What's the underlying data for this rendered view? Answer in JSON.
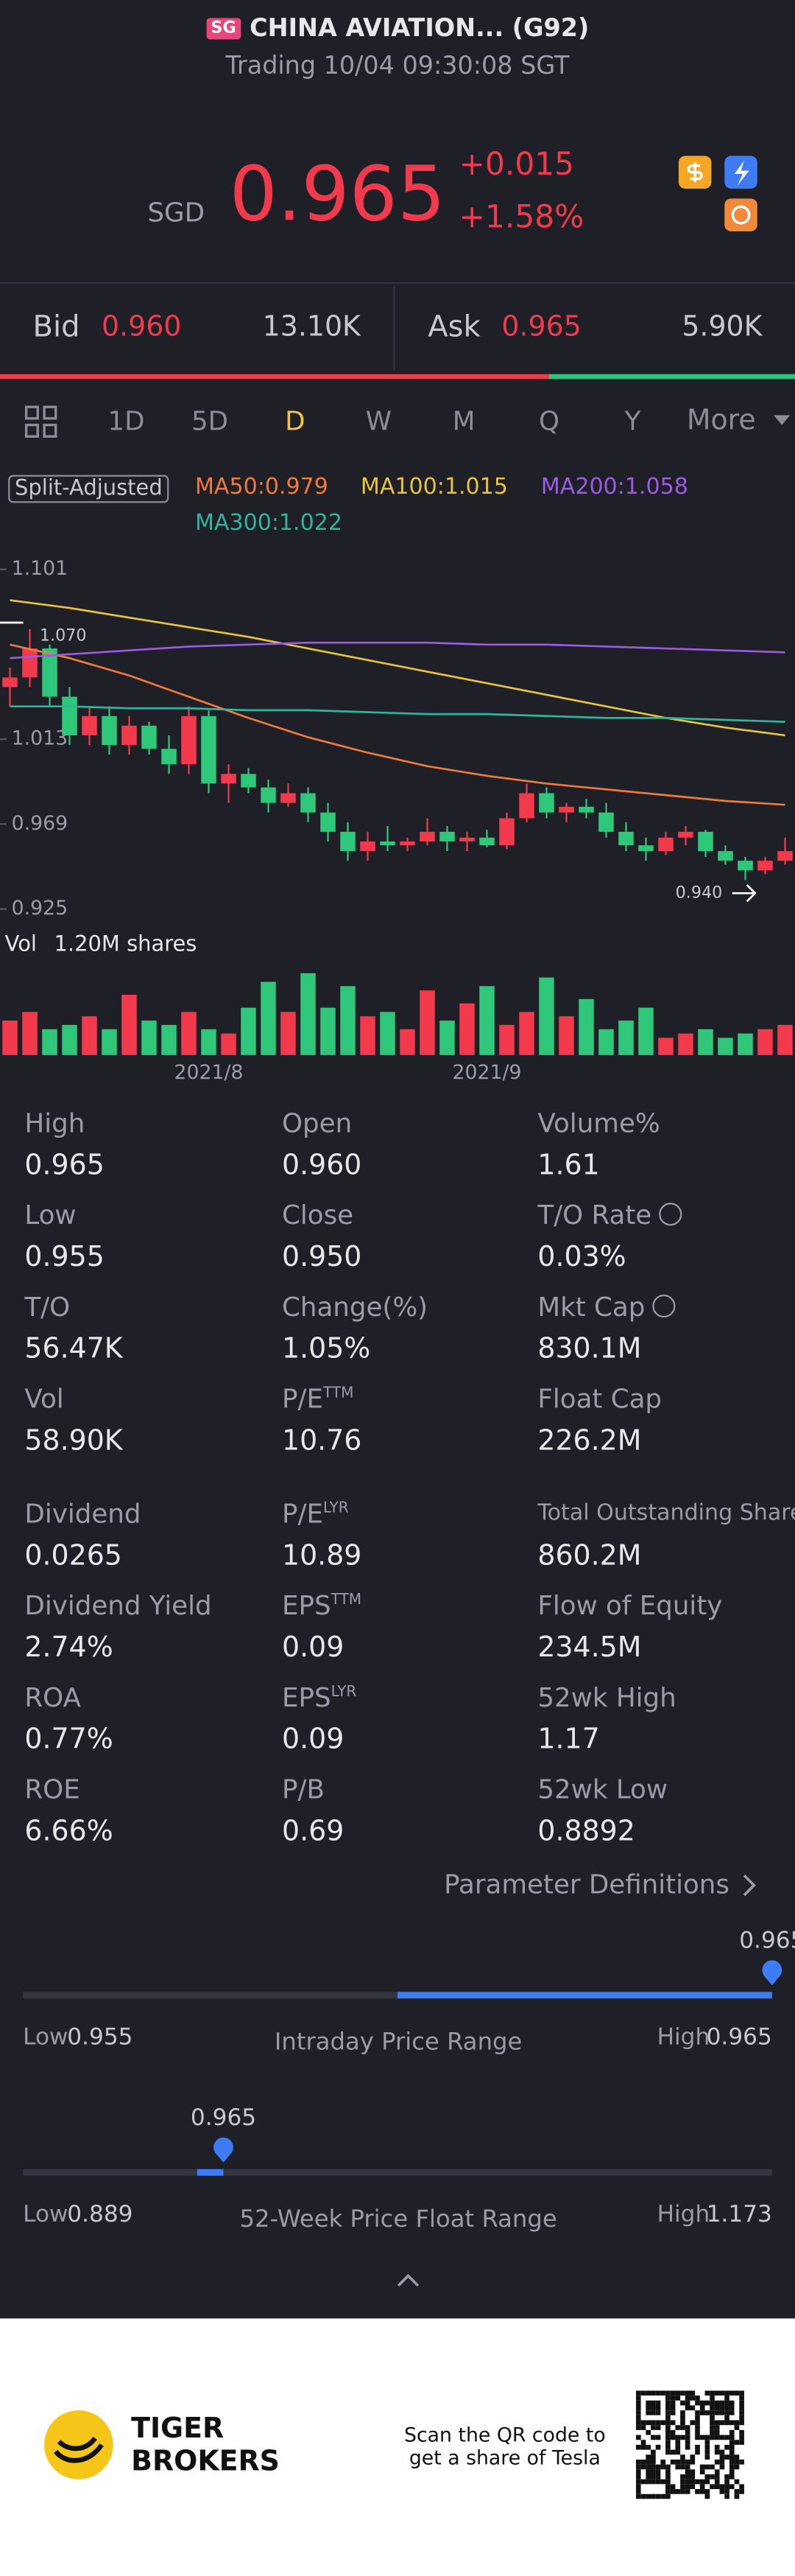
{
  "header": {
    "badge": "SG",
    "name": "CHINA AVIATION... (G92)",
    "status": "Trading 10/04 09:30:08 SGT"
  },
  "quote": {
    "currency": "SGD",
    "price": "0.965",
    "change": "+0.015",
    "change_pct": "+1.58%"
  },
  "bid_ask": {
    "bid_label": "Bid",
    "bid": "0.960",
    "bid_size": "13.10K",
    "ask_label": "Ask",
    "ask": "0.965",
    "ask_size": "5.90K"
  },
  "tabs": [
    "1D",
    "5D",
    "D",
    "W",
    "M",
    "Q",
    "Y",
    "More"
  ],
  "adjust_label": "Split-Adjusted",
  "chart_data": {
    "type": "candlestick",
    "categories": [
      null,
      null,
      null,
      null,
      null,
      null,
      null,
      null,
      null,
      null,
      "2021/8",
      null,
      null,
      null,
      null,
      null,
      null,
      null,
      null,
      null,
      null,
      null,
      null,
      null,
      "2021/9",
      null,
      null,
      null,
      null,
      null,
      null,
      null,
      null,
      null,
      null,
      null,
      null,
      null,
      null,
      null
    ],
    "open": [
      1.04,
      1.045,
      1.06,
      1.035,
      1.015,
      1.025,
      1.01,
      1.02,
      1.008,
      1.0,
      1.025,
      0.99,
      0.995,
      0.988,
      0.98,
      0.985,
      0.975,
      0.965,
      0.955,
      0.96,
      0.958,
      0.96,
      0.965,
      0.96,
      0.962,
      0.958,
      0.972,
      0.985,
      0.975,
      0.978,
      0.975,
      0.965,
      0.958,
      0.955,
      0.962,
      0.965,
      0.955,
      0.95,
      0.945,
      0.95
    ],
    "high": [
      1.05,
      1.07,
      1.062,
      1.04,
      1.03,
      1.03,
      1.025,
      1.022,
      1.015,
      1.03,
      1.028,
      1.0,
      0.998,
      0.992,
      0.99,
      0.988,
      0.98,
      0.97,
      0.965,
      0.968,
      0.962,
      0.972,
      0.968,
      0.965,
      0.966,
      0.975,
      0.99,
      0.988,
      0.98,
      0.982,
      0.98,
      0.97,
      0.962,
      0.965,
      0.968,
      0.966,
      0.958,
      0.952,
      0.952,
      0.962
    ],
    "low": [
      1.03,
      1.04,
      1.03,
      1.01,
      1.01,
      1.005,
      1.005,
      1.005,
      0.995,
      0.995,
      0.985,
      0.98,
      0.985,
      0.975,
      0.978,
      0.97,
      0.96,
      0.95,
      0.95,
      0.955,
      0.955,
      0.958,
      0.955,
      0.955,
      0.957,
      0.956,
      0.97,
      0.972,
      0.97,
      0.972,
      0.962,
      0.955,
      0.95,
      0.953,
      0.958,
      0.952,
      0.948,
      0.94,
      0.943,
      0.948
    ],
    "close": [
      1.045,
      1.06,
      1.035,
      1.015,
      1.025,
      1.01,
      1.02,
      1.008,
      1.0,
      1.025,
      0.99,
      0.995,
      0.988,
      0.98,
      0.985,
      0.975,
      0.965,
      0.955,
      0.96,
      0.958,
      0.96,
      0.965,
      0.96,
      0.962,
      0.958,
      0.972,
      0.985,
      0.975,
      0.978,
      0.975,
      0.965,
      0.958,
      0.955,
      0.962,
      0.965,
      0.955,
      0.95,
      0.945,
      0.95,
      0.955
    ],
    "up_color": "#f23a4c",
    "down_color": "#2fc77a",
    "ylim": [
      0.925,
      1.101
    ],
    "yticks": [
      1.101,
      1.013,
      0.969,
      0.925
    ],
    "max_label": "1.070",
    "min_label": "0.940",
    "ma_x": [
      0,
      3,
      6,
      9,
      12,
      15,
      18,
      21,
      24,
      27,
      30,
      33,
      36,
      39
    ],
    "ma_series": [
      {
        "name": "MA50:0.979",
        "color": "#f07a3a",
        "values": [
          1.062,
          1.055,
          1.046,
          1.035,
          1.024,
          1.014,
          1.006,
          0.999,
          0.994,
          0.99,
          0.987,
          0.984,
          0.981,
          0.979
        ]
      },
      {
        "name": "MA100:1.015",
        "color": "#e8c43a",
        "values": [
          1.085,
          1.081,
          1.076,
          1.071,
          1.066,
          1.06,
          1.054,
          1.048,
          1.042,
          1.036,
          1.03,
          1.024,
          1.019,
          1.015
        ]
      },
      {
        "name": "MA200:1.058",
        "color": "#9a5ce0",
        "values": [
          1.055,
          1.057,
          1.059,
          1.061,
          1.062,
          1.063,
          1.063,
          1.063,
          1.062,
          1.062,
          1.061,
          1.06,
          1.059,
          1.058
        ]
      },
      {
        "name": "MA300:1.022",
        "color": "#2fb59a",
        "values": [
          1.03,
          1.03,
          1.029,
          1.029,
          1.028,
          1.028,
          1.027,
          1.026,
          1.026,
          1.025,
          1.024,
          1.024,
          1.023,
          1.022
        ]
      }
    ],
    "volume": {
      "label": "Vol",
      "total": "1.20M shares",
      "ylim": [
        0,
        1.2
      ],
      "values": [
        0.4,
        0.5,
        0.3,
        0.35,
        0.45,
        0.3,
        0.7,
        0.4,
        0.35,
        0.5,
        0.3,
        0.25,
        0.55,
        0.85,
        0.5,
        0.95,
        0.55,
        0.8,
        0.45,
        0.5,
        0.3,
        0.75,
        0.4,
        0.6,
        0.8,
        0.35,
        0.5,
        0.9,
        0.45,
        0.65,
        0.3,
        0.4,
        0.55,
        0.2,
        0.25,
        0.3,
        0.2,
        0.25,
        0.3,
        0.35
      ]
    }
  },
  "stats": [
    [
      {
        "label": "High",
        "value": "0.965"
      },
      {
        "label": "Open",
        "value": "0.960"
      },
      {
        "label": "Volume%",
        "value": "1.61"
      }
    ],
    [
      {
        "label": "Low",
        "value": "0.955"
      },
      {
        "label": "Close",
        "value": "0.950"
      },
      {
        "label": "T/O Rate",
        "value": "0.03%"
      }
    ],
    [
      {
        "label": "T/O",
        "value": "56.47K"
      },
      {
        "label": "Change(%)",
        "value": "1.05%"
      },
      {
        "label": "Mkt Cap",
        "value": "830.1M"
      }
    ],
    [
      {
        "label": "Vol",
        "value": "58.90K"
      },
      {
        "label": "P/E",
        "sup": "TTM",
        "value": "10.76"
      },
      {
        "label": "Float Cap",
        "value": "226.2M"
      }
    ],
    [
      {
        "label": "Dividend",
        "value": "0.0265"
      },
      {
        "label": "P/E",
        "sup": "LYR",
        "value": "10.89"
      },
      {
        "label": "Total Outstanding Shares",
        "value": "860.2M"
      }
    ],
    [
      {
        "label": "Dividend Yield",
        "value": "2.74%"
      },
      {
        "label": "EPS",
        "sup": "TTM",
        "value": "0.09"
      },
      {
        "label": "Flow of Equity",
        "value": "234.5M"
      }
    ],
    [
      {
        "label": "ROA",
        "value": "0.77%"
      },
      {
        "label": "EPS",
        "sup": "LYR",
        "value": "0.09"
      },
      {
        "label": "52wk High",
        "value": "1.17"
      }
    ],
    [
      {
        "label": "ROE",
        "value": "6.66%"
      },
      {
        "label": "P/B",
        "value": "0.69"
      },
      {
        "label": "52wk Low",
        "value": "0.8892"
      }
    ]
  ],
  "param_link": "Parameter Definitions",
  "ranges": [
    {
      "title": "Intraday Price Range",
      "low_label": "Low",
      "low": 0.955,
      "high_label": "High",
      "high": 0.965,
      "current": 0.965
    },
    {
      "title": "52-Week Price Float Range",
      "low_label": "Low",
      "low": 0.889,
      "high_label": "High",
      "high": 1.173,
      "current": 0.965
    }
  ],
  "footer": {
    "brand": [
      "TIGER",
      "BROKERS"
    ],
    "promo": [
      "Scan the QR code to",
      "get a share of Tesla"
    ]
  }
}
